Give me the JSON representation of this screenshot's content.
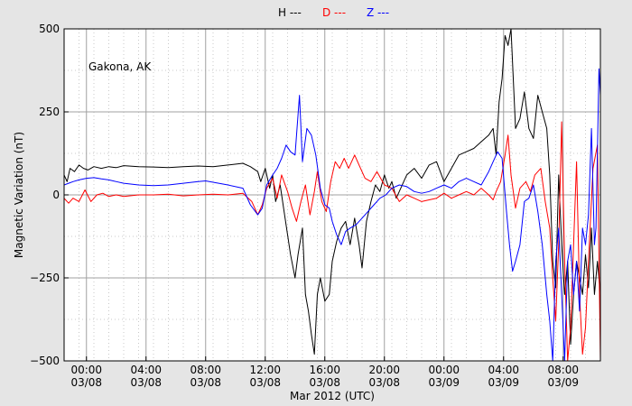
{
  "chart_data": {
    "type": "line",
    "xlabel": "Mar 2012 (UTC)",
    "ylabel": "Magnetic Variation (nT)",
    "annotation": "Gakona, AK",
    "x_unit": "hours since 2012-03-07 22:30 UTC",
    "xlim": [
      0,
      36
    ],
    "ylim": [
      -500,
      500
    ],
    "x_ticks": [
      {
        "x": 1.5,
        "time": "00:00",
        "date": "03/08"
      },
      {
        "x": 5.5,
        "time": "04:00",
        "date": "03/08"
      },
      {
        "x": 9.5,
        "time": "08:00",
        "date": "03/08"
      },
      {
        "x": 13.5,
        "time": "12:00",
        "date": "03/08"
      },
      {
        "x": 17.5,
        "time": "16:00",
        "date": "03/08"
      },
      {
        "x": 21.5,
        "time": "20:00",
        "date": "03/08"
      },
      {
        "x": 25.5,
        "time": "00:00",
        "date": "03/09"
      },
      {
        "x": 29.5,
        "time": "04:00",
        "date": "03/09"
      },
      {
        "x": 33.5,
        "time": "08:00",
        "date": "03/09"
      }
    ],
    "y_ticks": [
      {
        "y": 500,
        "label": "500"
      },
      {
        "y": 250,
        "label": "250"
      },
      {
        "y": 0,
        "label": "0"
      },
      {
        "y": -250,
        "label": "−250"
      },
      {
        "y": -500,
        "label": "−500"
      }
    ],
    "grid": true,
    "legend_position": "top-center",
    "series": [
      {
        "name": "H ---",
        "color": "#000000",
        "points": [
          [
            0,
            60
          ],
          [
            0.2,
            40
          ],
          [
            0.4,
            80
          ],
          [
            0.7,
            70
          ],
          [
            1,
            90
          ],
          [
            1.3,
            80
          ],
          [
            1.6,
            75
          ],
          [
            2,
            85
          ],
          [
            2.5,
            80
          ],
          [
            3,
            85
          ],
          [
            3.5,
            82
          ],
          [
            4,
            88
          ],
          [
            5,
            85
          ],
          [
            6,
            84
          ],
          [
            7,
            82
          ],
          [
            8,
            85
          ],
          [
            9,
            87
          ],
          [
            10,
            85
          ],
          [
            11,
            90
          ],
          [
            12,
            95
          ],
          [
            12.5,
            85
          ],
          [
            13,
            70
          ],
          [
            13.2,
            40
          ],
          [
            13.5,
            80
          ],
          [
            13.8,
            20
          ],
          [
            14,
            60
          ],
          [
            14.2,
            -20
          ],
          [
            14.5,
            30
          ],
          [
            14.8,
            -60
          ],
          [
            15,
            -120
          ],
          [
            15.2,
            -180
          ],
          [
            15.5,
            -250
          ],
          [
            15.7,
            -180
          ],
          [
            16,
            -100
          ],
          [
            16.2,
            -300
          ],
          [
            16.4,
            -350
          ],
          [
            16.6,
            -420
          ],
          [
            16.8,
            -480
          ],
          [
            17,
            -300
          ],
          [
            17.2,
            -250
          ],
          [
            17.5,
            -320
          ],
          [
            17.8,
            -300
          ],
          [
            18,
            -200
          ],
          [
            18.3,
            -140
          ],
          [
            18.6,
            -100
          ],
          [
            18.9,
            -80
          ],
          [
            19.2,
            -150
          ],
          [
            19.5,
            -70
          ],
          [
            19.8,
            -150
          ],
          [
            20,
            -220
          ],
          [
            20.3,
            -80
          ],
          [
            20.6,
            -20
          ],
          [
            20.9,
            30
          ],
          [
            21.2,
            10
          ],
          [
            21.5,
            60
          ],
          [
            21.8,
            20
          ],
          [
            22,
            40
          ],
          [
            22.3,
            -10
          ],
          [
            22.6,
            20
          ],
          [
            23,
            60
          ],
          [
            23.5,
            80
          ],
          [
            24,
            50
          ],
          [
            24.5,
            90
          ],
          [
            25,
            100
          ],
          [
            25.5,
            40
          ],
          [
            26,
            80
          ],
          [
            26.5,
            120
          ],
          [
            27,
            130
          ],
          [
            27.5,
            140
          ],
          [
            28,
            160
          ],
          [
            28.5,
            180
          ],
          [
            28.8,
            200
          ],
          [
            29,
            120
          ],
          [
            29.2,
            280
          ],
          [
            29.4,
            350
          ],
          [
            29.6,
            480
          ],
          [
            29.8,
            450
          ],
          [
            30,
            500
          ],
          [
            30.3,
            200
          ],
          [
            30.6,
            230
          ],
          [
            30.9,
            310
          ],
          [
            31.2,
            200
          ],
          [
            31.5,
            170
          ],
          [
            31.8,
            300
          ],
          [
            32.1,
            250
          ],
          [
            32.4,
            200
          ],
          [
            32.6,
            60
          ],
          [
            32.8,
            -200
          ],
          [
            33,
            -280
          ],
          [
            33.2,
            60
          ],
          [
            33.4,
            -150
          ],
          [
            33.6,
            -300
          ],
          [
            33.8,
            -200
          ],
          [
            34,
            -450
          ],
          [
            34.2,
            -300
          ],
          [
            34.4,
            -200
          ],
          [
            34.6,
            -250
          ],
          [
            34.8,
            -300
          ],
          [
            35,
            -180
          ],
          [
            35.2,
            -280
          ],
          [
            35.4,
            -100
          ],
          [
            35.6,
            -300
          ],
          [
            35.8,
            -200
          ],
          [
            36,
            -300
          ]
        ]
      },
      {
        "name": "D ---",
        "color": "#ff0000",
        "points": [
          [
            0,
            -10
          ],
          [
            0.3,
            -25
          ],
          [
            0.6,
            -10
          ],
          [
            1,
            -20
          ],
          [
            1.4,
            15
          ],
          [
            1.8,
            -20
          ],
          [
            2.2,
            0
          ],
          [
            2.6,
            5
          ],
          [
            3,
            -5
          ],
          [
            3.5,
            0
          ],
          [
            4,
            -5
          ],
          [
            5,
            0
          ],
          [
            6,
            0
          ],
          [
            7,
            2
          ],
          [
            8,
            -3
          ],
          [
            9,
            0
          ],
          [
            10,
            2
          ],
          [
            11,
            0
          ],
          [
            12,
            5
          ],
          [
            12.6,
            -20
          ],
          [
            13,
            -60
          ],
          [
            13.3,
            -30
          ],
          [
            13.6,
            20
          ],
          [
            14,
            50
          ],
          [
            14.3,
            -10
          ],
          [
            14.6,
            60
          ],
          [
            15,
            10
          ],
          [
            15.3,
            -40
          ],
          [
            15.6,
            -80
          ],
          [
            15.9,
            -20
          ],
          [
            16.2,
            30
          ],
          [
            16.5,
            -60
          ],
          [
            16.8,
            10
          ],
          [
            17,
            70
          ],
          [
            17.3,
            -20
          ],
          [
            17.6,
            -50
          ],
          [
            17.9,
            40
          ],
          [
            18.2,
            100
          ],
          [
            18.5,
            80
          ],
          [
            18.8,
            110
          ],
          [
            19.1,
            80
          ],
          [
            19.5,
            120
          ],
          [
            19.8,
            90
          ],
          [
            20.2,
            50
          ],
          [
            20.6,
            40
          ],
          [
            21,
            70
          ],
          [
            21.5,
            30
          ],
          [
            22,
            20
          ],
          [
            22.5,
            -20
          ],
          [
            23,
            0
          ],
          [
            23.5,
            -10
          ],
          [
            24,
            -20
          ],
          [
            24.5,
            -15
          ],
          [
            25,
            -10
          ],
          [
            25.5,
            5
          ],
          [
            26,
            -10
          ],
          [
            26.5,
            0
          ],
          [
            27,
            10
          ],
          [
            27.5,
            0
          ],
          [
            28,
            20
          ],
          [
            28.5,
            0
          ],
          [
            28.8,
            -15
          ],
          [
            29,
            10
          ],
          [
            29.3,
            40
          ],
          [
            29.6,
            120
          ],
          [
            29.8,
            180
          ],
          [
            30,
            60
          ],
          [
            30.3,
            -40
          ],
          [
            30.6,
            20
          ],
          [
            31,
            40
          ],
          [
            31.3,
            10
          ],
          [
            31.6,
            60
          ],
          [
            32,
            80
          ],
          [
            32.3,
            -20
          ],
          [
            32.6,
            -100
          ],
          [
            32.8,
            -250
          ],
          [
            33,
            -380
          ],
          [
            33.2,
            -150
          ],
          [
            33.4,
            220
          ],
          [
            33.6,
            -200
          ],
          [
            33.8,
            -500
          ],
          [
            34,
            -400
          ],
          [
            34.2,
            -150
          ],
          [
            34.4,
            100
          ],
          [
            34.6,
            -300
          ],
          [
            34.8,
            -480
          ],
          [
            35,
            -400
          ],
          [
            35.2,
            -200
          ],
          [
            35.5,
            80
          ],
          [
            35.8,
            150
          ],
          [
            36,
            -500
          ]
        ]
      },
      {
        "name": "Z ---",
        "color": "#0000ff",
        "points": [
          [
            0,
            30
          ],
          [
            0.3,
            35
          ],
          [
            0.6,
            40
          ],
          [
            1,
            45
          ],
          [
            1.5,
            50
          ],
          [
            2,
            52
          ],
          [
            2.5,
            48
          ],
          [
            3,
            45
          ],
          [
            3.5,
            40
          ],
          [
            4,
            35
          ],
          [
            5,
            30
          ],
          [
            6,
            28
          ],
          [
            7,
            30
          ],
          [
            8,
            35
          ],
          [
            9,
            40
          ],
          [
            9.5,
            42
          ],
          [
            10,
            38
          ],
          [
            11,
            30
          ],
          [
            12,
            20
          ],
          [
            12.5,
            -30
          ],
          [
            13,
            -60
          ],
          [
            13.3,
            -40
          ],
          [
            13.6,
            30
          ],
          [
            14,
            60
          ],
          [
            14.3,
            80
          ],
          [
            14.6,
            110
          ],
          [
            14.9,
            150
          ],
          [
            15.2,
            130
          ],
          [
            15.5,
            120
          ],
          [
            15.8,
            300
          ],
          [
            16,
            100
          ],
          [
            16.3,
            200
          ],
          [
            16.6,
            180
          ],
          [
            16.9,
            120
          ],
          [
            17.2,
            20
          ],
          [
            17.5,
            -30
          ],
          [
            17.8,
            -40
          ],
          [
            18,
            -80
          ],
          [
            18.3,
            -120
          ],
          [
            18.6,
            -150
          ],
          [
            18.9,
            -110
          ],
          [
            19.2,
            -100
          ],
          [
            19.6,
            -90
          ],
          [
            20,
            -70
          ],
          [
            20.4,
            -50
          ],
          [
            20.8,
            -30
          ],
          [
            21.2,
            -10
          ],
          [
            21.6,
            0
          ],
          [
            22,
            20
          ],
          [
            22.5,
            30
          ],
          [
            23,
            25
          ],
          [
            23.5,
            10
          ],
          [
            24,
            5
          ],
          [
            24.5,
            10
          ],
          [
            25,
            20
          ],
          [
            25.5,
            30
          ],
          [
            26,
            20
          ],
          [
            26.5,
            40
          ],
          [
            27,
            50
          ],
          [
            27.5,
            40
          ],
          [
            28,
            30
          ],
          [
            28.5,
            70
          ],
          [
            28.8,
            100
          ],
          [
            29.1,
            130
          ],
          [
            29.4,
            110
          ],
          [
            29.7,
            -50
          ],
          [
            29.9,
            -150
          ],
          [
            30.1,
            -230
          ],
          [
            30.3,
            -200
          ],
          [
            30.6,
            -150
          ],
          [
            30.9,
            -20
          ],
          [
            31.2,
            -10
          ],
          [
            31.5,
            30
          ],
          [
            31.8,
            -50
          ],
          [
            32.1,
            -150
          ],
          [
            32.4,
            -300
          ],
          [
            32.6,
            -380
          ],
          [
            32.8,
            -500
          ],
          [
            33,
            -200
          ],
          [
            33.2,
            -100
          ],
          [
            33.4,
            -300
          ],
          [
            33.6,
            -500
          ],
          [
            33.8,
            -200
          ],
          [
            34,
            -150
          ],
          [
            34.2,
            -300
          ],
          [
            34.4,
            -200
          ],
          [
            34.6,
            -350
          ],
          [
            34.8,
            -100
          ],
          [
            35,
            -150
          ],
          [
            35.2,
            -60
          ],
          [
            35.4,
            200
          ],
          [
            35.6,
            -150
          ],
          [
            35.7,
            -100
          ],
          [
            35.9,
            380
          ],
          [
            36,
            300
          ]
        ]
      }
    ]
  }
}
